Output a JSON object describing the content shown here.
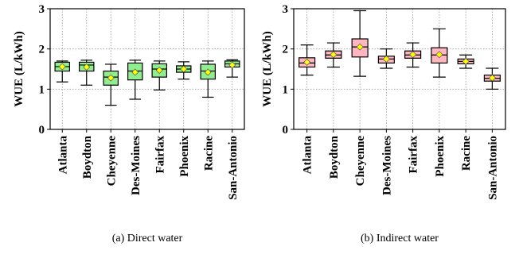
{
  "chart_data": [
    {
      "type": "boxplot",
      "caption": "(a)  Direct water",
      "ylabel": "WUE (L/kWh)",
      "ylim": [
        0,
        3
      ],
      "yticks": [
        "0",
        "1",
        "2",
        "3"
      ],
      "grid": true,
      "box_color": "#90ee90",
      "mean_color": "#ffff00",
      "categories": [
        "Atlanta",
        "Boydton",
        "Cheyenne",
        "Des-Moines",
        "Fairfax",
        "Phoenix",
        "Racine",
        "San-Antonio"
      ],
      "boxes": [
        {
          "whisker_low": 1.18,
          "q1": 1.45,
          "median": 1.56,
          "q3": 1.67,
          "whisker_high": 1.7,
          "mean": 1.56
        },
        {
          "whisker_low": 1.1,
          "q1": 1.45,
          "median": 1.6,
          "q3": 1.67,
          "whisker_high": 1.72,
          "mean": 1.55
        },
        {
          "whisker_low": 0.6,
          "q1": 1.1,
          "median": 1.3,
          "q3": 1.45,
          "whisker_high": 1.62,
          "mean": 1.28
        },
        {
          "whisker_low": 0.75,
          "q1": 1.23,
          "median": 1.45,
          "q3": 1.65,
          "whisker_high": 1.72,
          "mean": 1.42
        },
        {
          "whisker_low": 0.98,
          "q1": 1.3,
          "median": 1.5,
          "q3": 1.63,
          "whisker_high": 1.7,
          "mean": 1.47
        },
        {
          "whisker_low": 1.25,
          "q1": 1.42,
          "median": 1.5,
          "q3": 1.58,
          "whisker_high": 1.68,
          "mean": 1.5
        },
        {
          "whisker_low": 0.8,
          "q1": 1.25,
          "median": 1.45,
          "q3": 1.62,
          "whisker_high": 1.7,
          "mean": 1.42
        },
        {
          "whisker_low": 1.3,
          "q1": 1.55,
          "median": 1.63,
          "q3": 1.7,
          "whisker_high": 1.73,
          "mean": 1.6
        }
      ]
    },
    {
      "type": "boxplot",
      "caption": "(b)  Indirect water",
      "ylabel": "WUE (L/kWh)",
      "ylim": [
        0,
        3
      ],
      "yticks": [
        "0",
        "1",
        "2",
        "3"
      ],
      "grid": true,
      "box_color": "#ffb6c1",
      "mean_color": "#ffff00",
      "categories": [
        "Atlanta",
        "Boydton",
        "Cheyenne",
        "Des-Moines",
        "Fairfax",
        "Phoenix",
        "Racine",
        "San-Antonio"
      ],
      "boxes": [
        {
          "whisker_low": 1.35,
          "q1": 1.55,
          "median": 1.65,
          "q3": 1.78,
          "whisker_high": 2.1,
          "mean": 1.67
        },
        {
          "whisker_low": 1.55,
          "q1": 1.77,
          "median": 1.85,
          "q3": 1.95,
          "whisker_high": 2.15,
          "mean": 1.86
        },
        {
          "whisker_low": 1.32,
          "q1": 1.8,
          "median": 2.05,
          "q3": 2.25,
          "whisker_high": 2.95,
          "mean": 2.05
        },
        {
          "whisker_low": 1.52,
          "q1": 1.65,
          "median": 1.75,
          "q3": 1.82,
          "whisker_high": 2.0,
          "mean": 1.75
        },
        {
          "whisker_low": 1.55,
          "q1": 1.77,
          "median": 1.85,
          "q3": 1.95,
          "whisker_high": 2.15,
          "mean": 1.86
        },
        {
          "whisker_low": 1.3,
          "q1": 1.65,
          "median": 1.85,
          "q3": 2.03,
          "whisker_high": 2.5,
          "mean": 1.86
        },
        {
          "whisker_low": 1.52,
          "q1": 1.63,
          "median": 1.69,
          "q3": 1.75,
          "whisker_high": 1.85,
          "mean": 1.69
        },
        {
          "whisker_low": 1.0,
          "q1": 1.2,
          "median": 1.27,
          "q3": 1.35,
          "whisker_high": 1.52,
          "mean": 1.28
        }
      ]
    }
  ]
}
